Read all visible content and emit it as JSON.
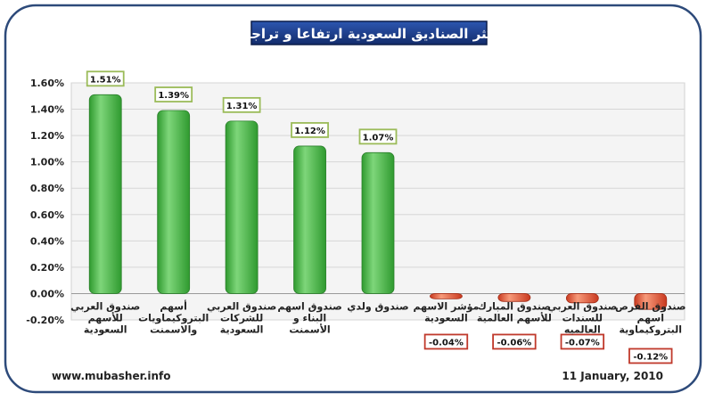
{
  "chart_data": {
    "type": "bar",
    "title": "اكثر الصناديق السعودية ارتفاعا و تراجعا",
    "categories": [
      [
        "صندوق العربي",
        "للأسهم",
        "السعودية"
      ],
      [
        "أسهم",
        "البتروكيماويات",
        "والاسمنت"
      ],
      [
        "صندوق العربي",
        "للشركات",
        "السعودية"
      ],
      [
        "صندوق اسهم",
        "البناء و",
        "الأسمنت"
      ],
      [
        "صندوق ولدي"
      ],
      [
        "مؤشر الاسهم",
        "السعودية"
      ],
      [
        "صندوق المبارك",
        "للأسهم العالمية"
      ],
      [
        "صندوق العربي",
        "للسندات",
        "العالميه"
      ],
      [
        "صندوق الفرص",
        "اسهم",
        "البتروكيماوية"
      ]
    ],
    "values": [
      1.51,
      1.39,
      1.31,
      1.12,
      1.07,
      -0.04,
      -0.06,
      -0.07,
      -0.12
    ],
    "value_labels": [
      "1.51%",
      "1.39%",
      "1.31%",
      "1.12%",
      "1.07%",
      "-0.04%",
      "-0.06%",
      "-0.07%",
      "-0.12%"
    ],
    "ylim": [
      -0.2,
      1.6
    ],
    "yticks": [
      "-0.20%",
      "0.00%",
      "0.20%",
      "0.40%",
      "0.60%",
      "0.80%",
      "1.00%",
      "1.20%",
      "1.40%",
      "1.60%"
    ],
    "grid": true,
    "xlabel": "",
    "ylabel": "",
    "colors": {
      "positive": "#3fb23f",
      "positive_light": "#8fe08a",
      "negative": "#e0452a",
      "negative_light": "#f79a7a",
      "positive_label_border": "#9bbb59",
      "negative_label_border": "#c0392b",
      "title_bg": "#1f3f8f",
      "plot_bg": "#f2f2f2",
      "frame": "#2d4a7a"
    }
  },
  "footer": {
    "source": "www.mubasher.info",
    "date": "11 January, 2010"
  }
}
